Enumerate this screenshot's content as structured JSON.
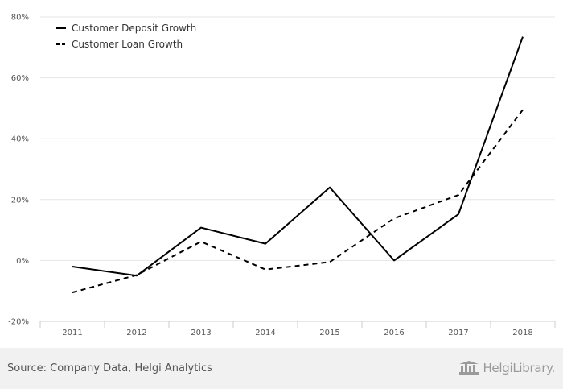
{
  "chart_data": {
    "type": "line",
    "categories": [
      "2011",
      "2012",
      "2013",
      "2014",
      "2015",
      "2016",
      "2017",
      "2018"
    ],
    "series": [
      {
        "name": "Customer Deposit Growth",
        "style": "solid",
        "values": [
          -2.0,
          -5.0,
          10.8,
          5.5,
          24.0,
          0.0,
          15.2,
          73.5
        ]
      },
      {
        "name": "Customer Loan Growth",
        "style": "dashed",
        "values": [
          -10.5,
          -4.8,
          6.2,
          -3.0,
          -0.5,
          13.8,
          21.5,
          49.5
        ]
      }
    ],
    "ylim": [
      -20,
      80
    ],
    "yticks": [
      -20,
      0,
      20,
      40,
      60,
      80
    ],
    "ytick_labels": [
      "-20%",
      "0%",
      "20%",
      "40%",
      "60%",
      "80%"
    ],
    "legend_position": "top-left",
    "grid": true,
    "title": "",
    "xlabel": "",
    "ylabel": ""
  },
  "source": "Source: Company Data, Helgi Analytics",
  "watermark": "HelgiLibrary.",
  "colors": {
    "line": "#000000",
    "grid": "#e6e6e6",
    "background": "#ffffff",
    "footer": "#f1f1f1"
  }
}
